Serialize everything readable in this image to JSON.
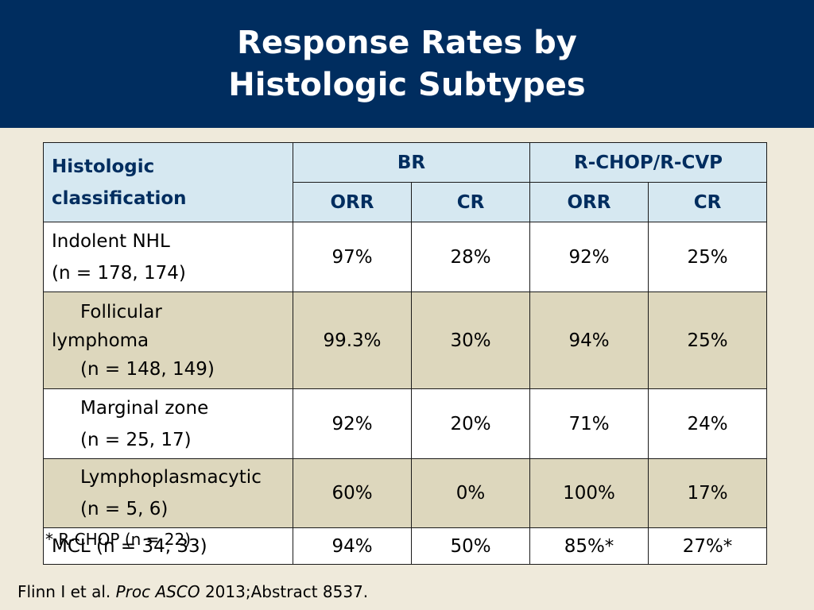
{
  "header": {
    "title_line1": "Response Rates by",
    "title_line2": "Histologic Subtypes",
    "bg_color": "#002d5f"
  },
  "table": {
    "first_header": [
      "Histologic",
      "classification"
    ],
    "group_headers": [
      "BR",
      "R-CHOP/R-CVP"
    ],
    "sub_headers": [
      "ORR",
      "CR",
      "ORR",
      "CR"
    ],
    "rows": [
      {
        "label": [
          "Indolent NHL",
          "(n = 178, 174)"
        ],
        "values": [
          "97%",
          "28%",
          "92%",
          "25%"
        ]
      },
      {
        "label": [
          "Follicular",
          "lymphoma",
          "(n = 148, 149)"
        ],
        "values": [
          "99.3%",
          "30%",
          "94%",
          "25%"
        ]
      },
      {
        "label": [
          "Marginal zone",
          "(n = 25, 17)"
        ],
        "values": [
          "92%",
          "20%",
          "71%",
          "24%"
        ]
      },
      {
        "label": [
          "Lymphoplasmacytic",
          "(n = 5, 6)"
        ],
        "values": [
          "60%",
          "0%",
          "100%",
          "17%"
        ]
      },
      {
        "label": [
          "MCL (n = 34, 33)"
        ],
        "values": [
          "94%",
          "50%",
          "85%*",
          "27%*"
        ]
      }
    ]
  },
  "footnote": "* R-CHOP (n = 22)",
  "citation": {
    "authors": "Flinn I et al.",
    "journal": "Proc ASCO",
    "ref": "2013;Abstract 8537."
  }
}
